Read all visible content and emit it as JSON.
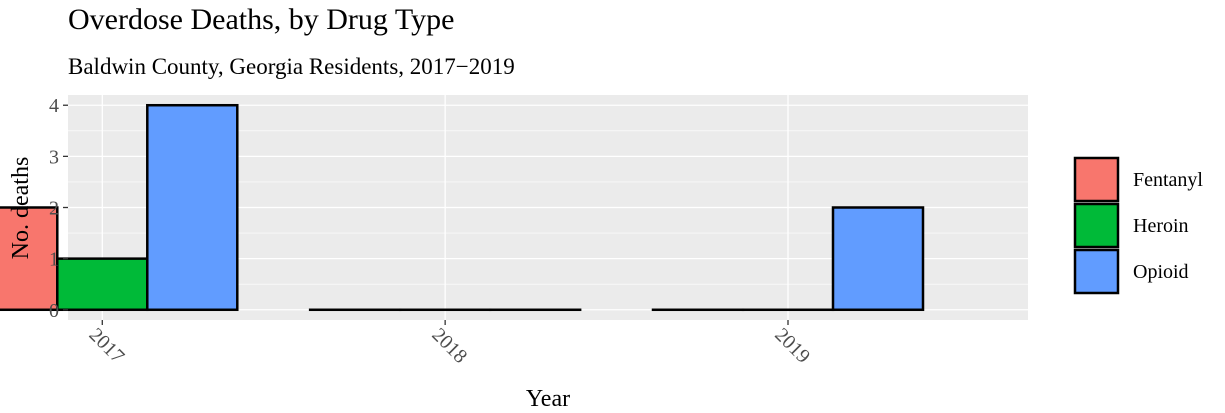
{
  "chart_data": {
    "type": "bar",
    "title": "Overdose Deaths, by Drug Type",
    "subtitle": "Baldwin County, Georgia Residents, 2017−2019",
    "xlabel": "Year",
    "ylabel": "No. deaths",
    "categories": [
      "2017",
      "2018",
      "2019"
    ],
    "ylim": [
      -0.2,
      4.2
    ],
    "yticks": [
      0,
      1,
      2,
      3,
      4
    ],
    "grid": true,
    "legend_position": "right",
    "series": [
      {
        "name": "Fentanyl",
        "color": "#F8766D",
        "values": [
          2,
          0,
          0
        ]
      },
      {
        "name": "Heroin",
        "color": "#00BA38",
        "values": [
          1,
          0,
          0
        ]
      },
      {
        "name": "Opioid",
        "color": "#619CFF",
        "values": [
          4,
          0,
          2
        ]
      }
    ]
  }
}
